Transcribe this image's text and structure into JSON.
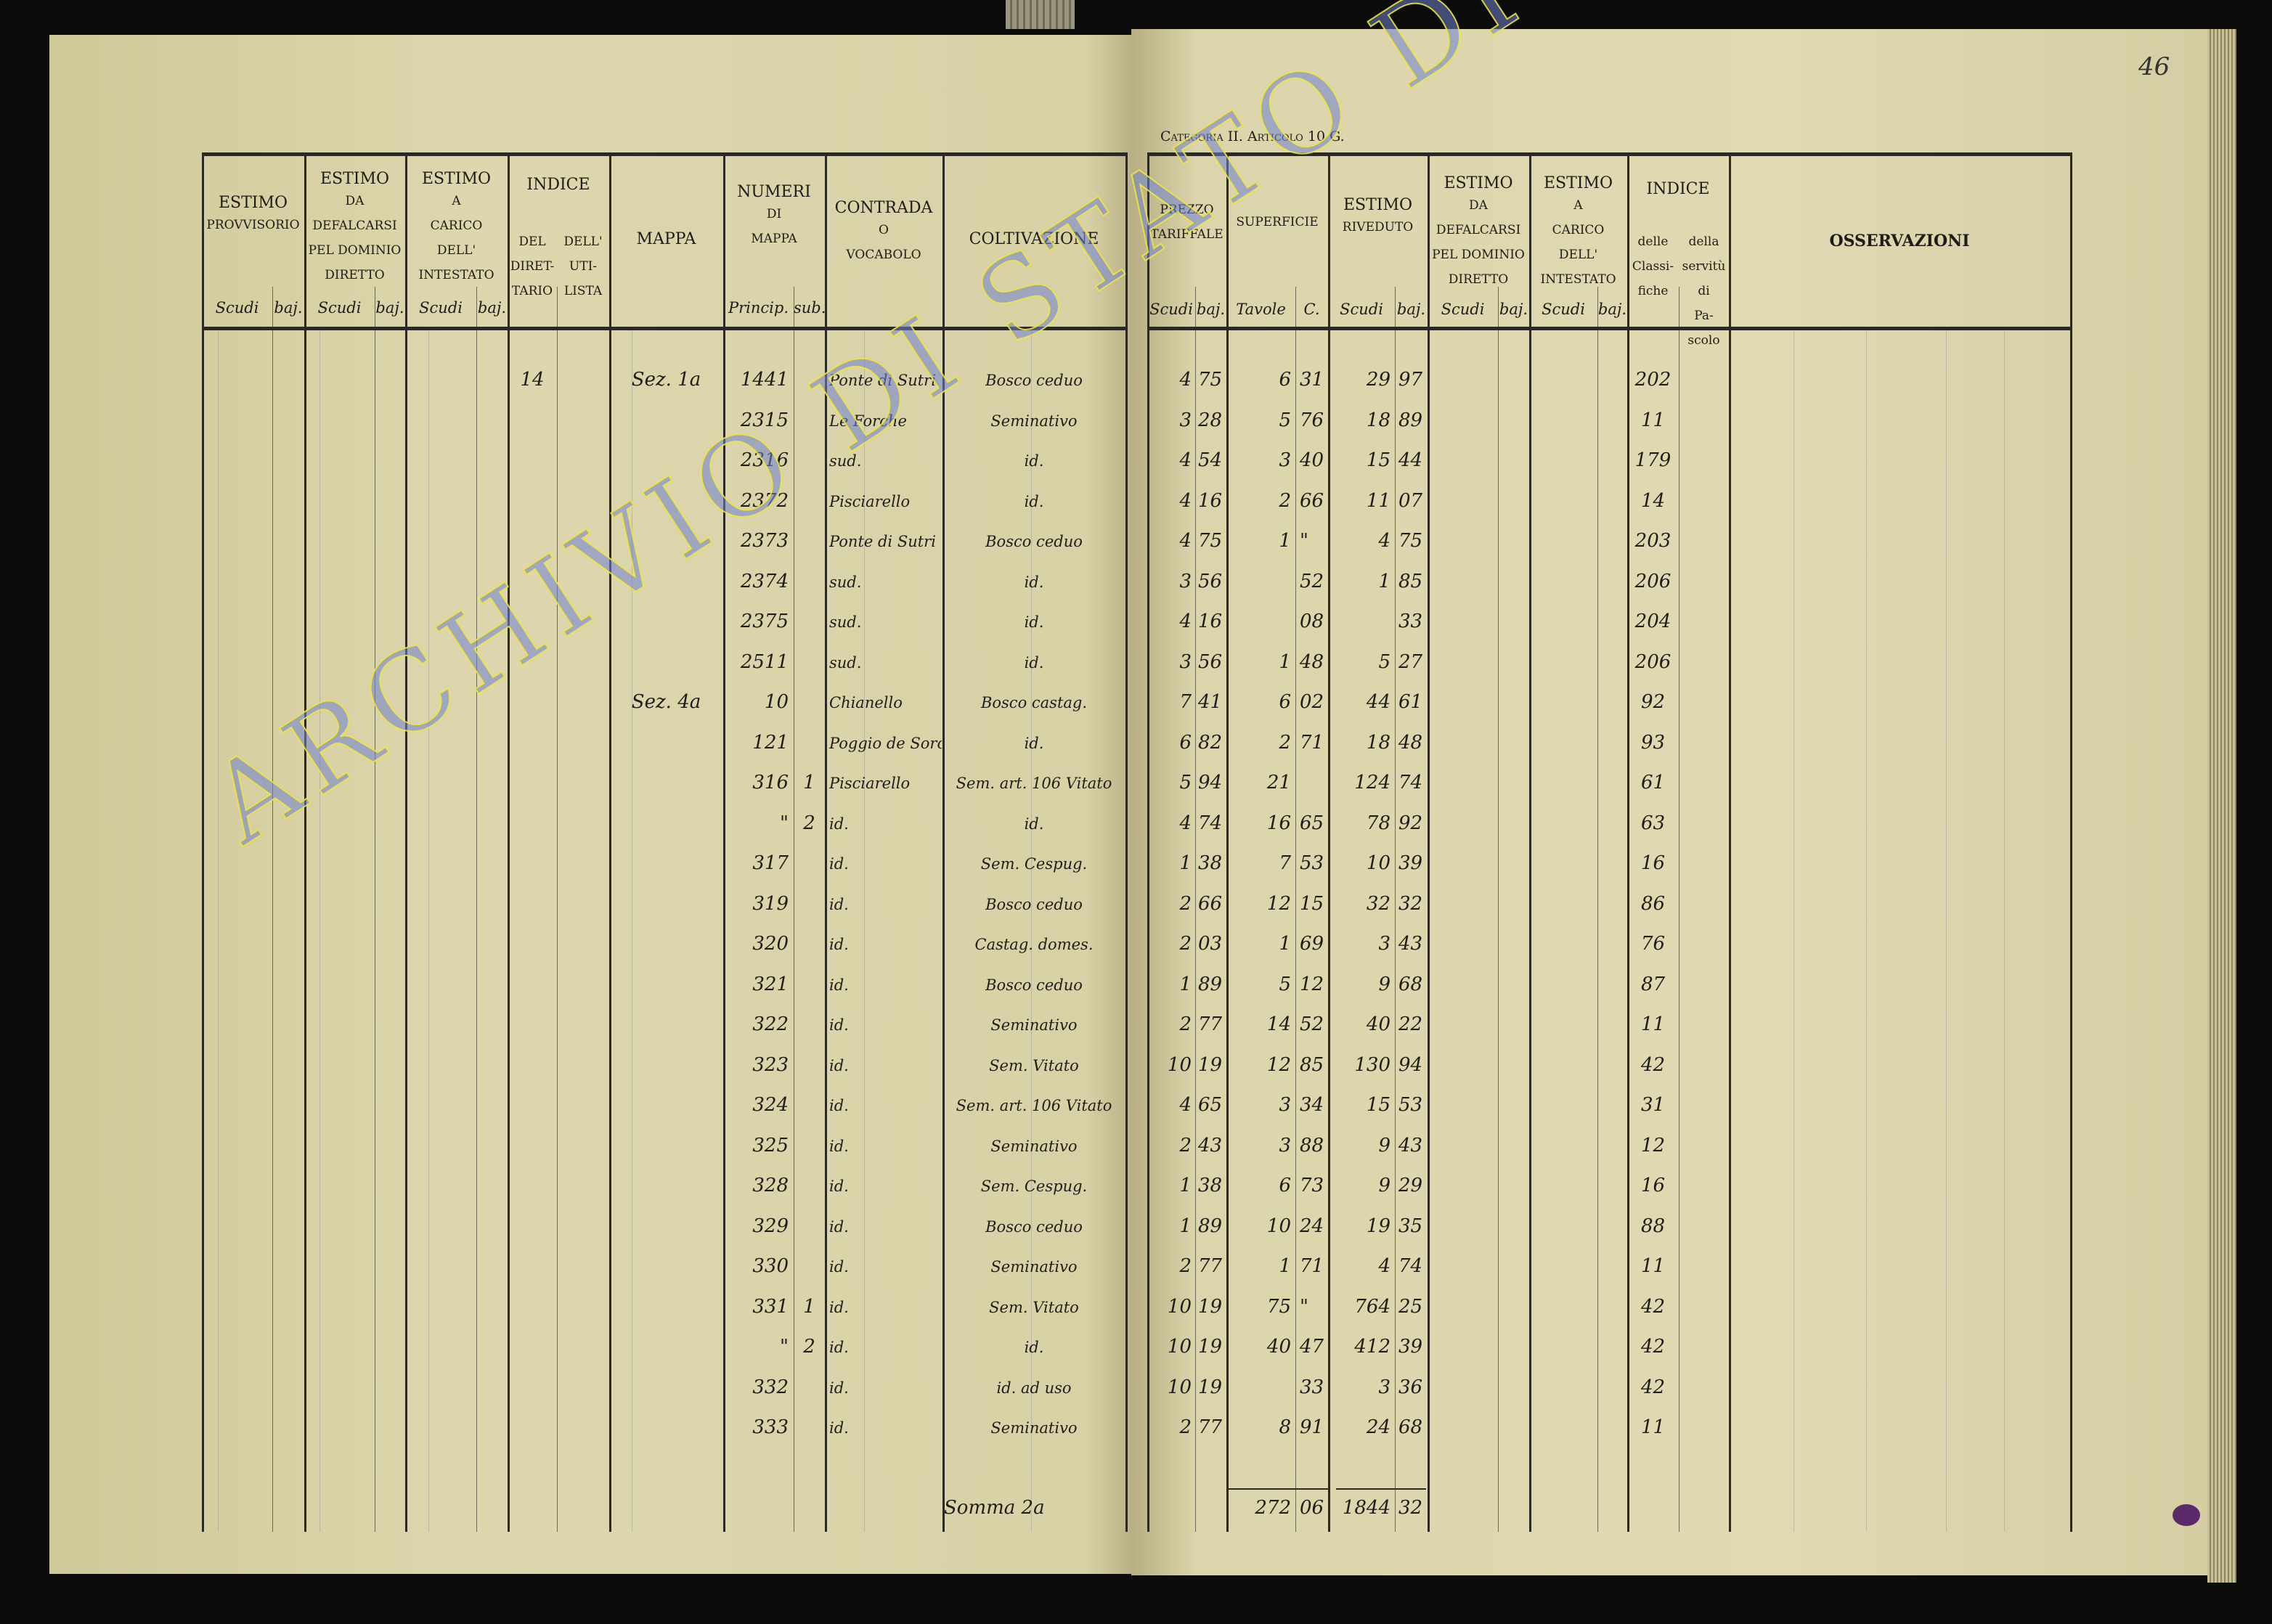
{
  "page_number": "46",
  "right_page_title": "Categoria II. Articolo 10 G.",
  "watermark": "ARCHIVIO DI STATO DI VITERBO",
  "left_headers": {
    "estimo_provvisorio": [
      "ESTIMO",
      "PROVVISORIO"
    ],
    "estimo_defalcarsi": [
      "ESTIMO",
      "DA",
      "DEFALCARSI",
      "PEL DOMINIO",
      "DIRETTO"
    ],
    "estimo_carico": [
      "ESTIMO",
      "A",
      "CARICO",
      "DELL'",
      "INTESTATO"
    ],
    "indice": "INDICE",
    "indice_direttario": [
      "DEL",
      "DIRET-",
      "TARIO"
    ],
    "indice_utilista": [
      "DELL'",
      "UTI-",
      "LISTA"
    ],
    "mappa": "MAPPA",
    "numeri_mappa": [
      "NUMERI",
      "DI",
      "MAPPA"
    ],
    "contrada": [
      "CONTRADA",
      "O",
      "VOCABOLO"
    ],
    "coltivazione": "COLTIVAZIONE",
    "scudi": "Scudi",
    "baj": "baj.",
    "princip": "Princip.",
    "sub": "sub."
  },
  "right_headers": {
    "prezzo": [
      "PREZZO",
      "TARIFFALE"
    ],
    "superficie": "SUPERFICIE",
    "estimo_riveduto": [
      "ESTIMO",
      "RIVEDUTO"
    ],
    "estimo_defalcarsi": [
      "ESTIMO",
      "DA",
      "DEFALCARSI",
      "PEL DOMINIO",
      "DIRETTO"
    ],
    "estimo_carico": [
      "ESTIMO",
      "A",
      "CARICO",
      "DELL'",
      "INTESTATO"
    ],
    "indice": "INDICE",
    "indice_classifiche": [
      "delle",
      "Classi-",
      "fiche"
    ],
    "indice_servitu": [
      "della",
      "servitù",
      "di",
      "Pa-",
      "scolo"
    ],
    "osservazioni": "OSSERVAZIONI",
    "scudi": "Scudi",
    "baj": "baj.",
    "tavole": "Tavole",
    "c": "C."
  },
  "rows": [
    {
      "direttario": "14",
      "mappa": "Sez. 1a",
      "princ": "1441",
      "sub": "",
      "contrada": "Ponte di Sutri",
      "colt": "Bosco ceduo",
      "ps": "4",
      "pb": "75",
      "tav": "6",
      "c": "31",
      "es": "29",
      "eb": "97",
      "cls": "202"
    },
    {
      "princ": "2315",
      "sub": "",
      "contrada": "Le Forche",
      "colt": "Seminativo",
      "ps": "3",
      "pb": "28",
      "tav": "5",
      "c": "76",
      "es": "18",
      "eb": "89",
      "cls": "11"
    },
    {
      "princ": "2316",
      "sub": "",
      "contrada": "sud.",
      "colt": "id.",
      "ps": "4",
      "pb": "54",
      "tav": "3",
      "c": "40",
      "es": "15",
      "eb": "44",
      "cls": "179"
    },
    {
      "princ": "2372",
      "sub": "",
      "contrada": "Pisciarello",
      "colt": "id.",
      "ps": "4",
      "pb": "16",
      "tav": "2",
      "c": "66",
      "es": "11",
      "eb": "07",
      "cls": "14"
    },
    {
      "princ": "2373",
      "sub": "",
      "contrada": "Ponte di Sutri",
      "colt": "Bosco ceduo",
      "ps": "4",
      "pb": "75",
      "tav": "1",
      "c": "\"",
      "es": "4",
      "eb": "75",
      "cls": "203"
    },
    {
      "princ": "2374",
      "sub": "",
      "contrada": "sud.",
      "colt": "id.",
      "ps": "3",
      "pb": "56",
      "tav": "",
      "c": "52",
      "es": "1",
      "eb": "85",
      "cls": "206"
    },
    {
      "princ": "2375",
      "sub": "",
      "contrada": "sud.",
      "colt": "id.",
      "ps": "4",
      "pb": "16",
      "tav": "",
      "c": "08",
      "es": "",
      "eb": "33",
      "cls": "204"
    },
    {
      "princ": "2511",
      "sub": "",
      "contrada": "sud.",
      "colt": "id.",
      "ps": "3",
      "pb": "56",
      "tav": "1",
      "c": "48",
      "es": "5",
      "eb": "27",
      "cls": "206"
    },
    {
      "mappa": "Sez. 4a",
      "princ": "10",
      "sub": "",
      "contrada": "Chianello",
      "colt": "Bosco castag.",
      "ps": "7",
      "pb": "41",
      "tav": "6",
      "c": "02",
      "es": "44",
      "eb": "61",
      "cls": "92"
    },
    {
      "princ": "121",
      "sub": "",
      "contrada": "Poggio de Sorci",
      "colt": "id.",
      "ps": "6",
      "pb": "82",
      "tav": "2",
      "c": "71",
      "es": "18",
      "eb": "48",
      "cls": "93"
    },
    {
      "princ": "316",
      "sub": "1",
      "contrada": "Pisciarello",
      "colt": "Sem. art. 106 Vitato",
      "ps": "5",
      "pb": "94",
      "tav": "21",
      "c": "",
      "es": "124",
      "eb": "74",
      "cls": "61"
    },
    {
      "princ": "\"",
      "sub": "2",
      "contrada": "id.",
      "colt": "id.",
      "ps": "4",
      "pb": "74",
      "tav": "16",
      "c": "65",
      "es": "78",
      "eb": "92",
      "cls": "63"
    },
    {
      "princ": "317",
      "sub": "",
      "contrada": "id.",
      "colt": "Sem. Cespug.",
      "ps": "1",
      "pb": "38",
      "tav": "7",
      "c": "53",
      "es": "10",
      "eb": "39",
      "cls": "16"
    },
    {
      "princ": "319",
      "sub": "",
      "contrada": "id.",
      "colt": "Bosco ceduo",
      "ps": "2",
      "pb": "66",
      "tav": "12",
      "c": "15",
      "es": "32",
      "eb": "32",
      "cls": "86"
    },
    {
      "princ": "320",
      "sub": "",
      "contrada": "id.",
      "colt": "Castag. domes.",
      "ps": "2",
      "pb": "03",
      "tav": "1",
      "c": "69",
      "es": "3",
      "eb": "43",
      "cls": "76"
    },
    {
      "princ": "321",
      "sub": "",
      "contrada": "id.",
      "colt": "Bosco ceduo",
      "ps": "1",
      "pb": "89",
      "tav": "5",
      "c": "12",
      "es": "9",
      "eb": "68",
      "cls": "87"
    },
    {
      "princ": "322",
      "sub": "",
      "contrada": "id.",
      "colt": "Seminativo",
      "ps": "2",
      "pb": "77",
      "tav": "14",
      "c": "52",
      "es": "40",
      "eb": "22",
      "cls": "11"
    },
    {
      "princ": "323",
      "sub": "",
      "contrada": "id.",
      "colt": "Sem. Vitato",
      "ps": "10",
      "pb": "19",
      "tav": "12",
      "c": "85",
      "es": "130",
      "eb": "94",
      "cls": "42"
    },
    {
      "princ": "324",
      "sub": "",
      "contrada": "id.",
      "colt": "Sem. art. 106 Vitato",
      "ps": "4",
      "pb": "65",
      "tav": "3",
      "c": "34",
      "es": "15",
      "eb": "53",
      "cls": "31"
    },
    {
      "princ": "325",
      "sub": "",
      "contrada": "id.",
      "colt": "Seminativo",
      "ps": "2",
      "pb": "43",
      "tav": "3",
      "c": "88",
      "es": "9",
      "eb": "43",
      "cls": "12"
    },
    {
      "princ": "328",
      "sub": "",
      "contrada": "id.",
      "colt": "Sem. Cespug.",
      "ps": "1",
      "pb": "38",
      "tav": "6",
      "c": "73",
      "es": "9",
      "eb": "29",
      "cls": "16"
    },
    {
      "princ": "329",
      "sub": "",
      "contrada": "id.",
      "colt": "Bosco ceduo",
      "ps": "1",
      "pb": "89",
      "tav": "10",
      "c": "24",
      "es": "19",
      "eb": "35",
      "cls": "88"
    },
    {
      "princ": "330",
      "sub": "",
      "contrada": "id.",
      "colt": "Seminativo",
      "ps": "2",
      "pb": "77",
      "tav": "1",
      "c": "71",
      "es": "4",
      "eb": "74",
      "cls": "11"
    },
    {
      "princ": "331",
      "sub": "1",
      "contrada": "id.",
      "colt": "Sem. Vitato",
      "ps": "10",
      "pb": "19",
      "tav": "75",
      "c": "\"",
      "es": "764",
      "eb": "25",
      "cls": "42"
    },
    {
      "princ": "\"",
      "sub": "2",
      "contrada": "id.",
      "colt": "id.",
      "ps": "10",
      "pb": "19",
      "tav": "40",
      "c": "47",
      "es": "412",
      "eb": "39",
      "cls": "42"
    },
    {
      "princ": "332",
      "sub": "",
      "contrada": "id.",
      "colt": "id. ad uso",
      "ps": "10",
      "pb": "19",
      "tav": "",
      "c": "33",
      "es": "3",
      "eb": "36",
      "cls": "42"
    },
    {
      "princ": "333",
      "sub": "",
      "contrada": "id.",
      "colt": "Seminativo",
      "ps": "2",
      "pb": "77",
      "tav": "8",
      "c": "91",
      "es": "24",
      "eb": "68",
      "cls": "11"
    }
  ],
  "total": {
    "label": "Somma 2a",
    "tav": "272",
    "c": "06",
    "es": "1844",
    "eb": "32"
  }
}
